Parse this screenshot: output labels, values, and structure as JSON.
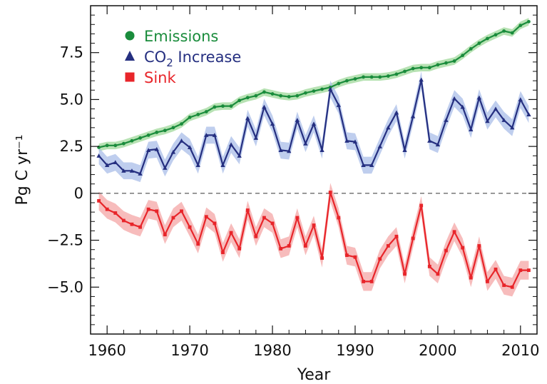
{
  "chart_data": {
    "type": "line",
    "title": "",
    "xlabel": "Year",
    "ylabel": "Pg C yr⁻¹",
    "xlim": [
      1958,
      2012
    ],
    "ylim": [
      -7.5,
      10
    ],
    "x_ticks": [
      1960,
      1970,
      1980,
      1990,
      2000,
      2010
    ],
    "x_tick_labels": [
      "1960",
      "1970",
      "1980",
      "1990",
      "2000",
      "2010"
    ],
    "y_ticks": [
      -5,
      -2.5,
      0,
      2.5,
      5,
      7.5
    ],
    "y_tick_labels": [
      "−5.0",
      "−2.5",
      "0",
      "2.5",
      "5.0",
      "7.5"
    ],
    "zero_line": "dashed",
    "grid": false,
    "legend_position": "top-left",
    "x": [
      1959,
      1960,
      1961,
      1962,
      1963,
      1964,
      1965,
      1966,
      1967,
      1968,
      1969,
      1970,
      1971,
      1972,
      1973,
      1974,
      1975,
      1976,
      1977,
      1978,
      1979,
      1980,
      1981,
      1982,
      1983,
      1984,
      1985,
      1986,
      1987,
      1988,
      1989,
      1990,
      1991,
      1992,
      1993,
      1994,
      1995,
      1996,
      1997,
      1998,
      1999,
      2000,
      2001,
      2002,
      2003,
      2004,
      2005,
      2006,
      2007,
      2008,
      2009,
      2010,
      2011
    ],
    "series": [
      {
        "name": "Emissions",
        "label_main": "Emissions",
        "label_sub": "",
        "label_rest": "",
        "marker": "circle",
        "color": "#1a8c3c",
        "band_color": "#9fd89a",
        "values": [
          2.45,
          2.55,
          2.55,
          2.65,
          2.8,
          2.95,
          3.1,
          3.25,
          3.35,
          3.5,
          3.7,
          4.05,
          4.2,
          4.35,
          4.6,
          4.65,
          4.65,
          4.95,
          5.1,
          5.2,
          5.4,
          5.3,
          5.2,
          5.15,
          5.2,
          5.35,
          5.45,
          5.55,
          5.65,
          5.85,
          6.0,
          6.1,
          6.2,
          6.2,
          6.2,
          6.25,
          6.35,
          6.5,
          6.65,
          6.7,
          6.7,
          6.85,
          6.95,
          7.05,
          7.35,
          7.7,
          8.0,
          8.25,
          8.45,
          8.65,
          8.55,
          8.95,
          9.15
        ],
        "uncertainty": 0.2
      },
      {
        "name": "CO₂ Increase",
        "label_main": "CO",
        "label_sub": "2",
        "label_rest": " Increase",
        "marker": "triangle",
        "color": "#252f80",
        "band_color": "#a9bde8",
        "values": [
          2.0,
          1.5,
          1.65,
          1.2,
          1.2,
          1.05,
          2.3,
          2.35,
          1.35,
          2.2,
          2.8,
          2.45,
          1.5,
          3.1,
          3.1,
          1.5,
          2.6,
          2.0,
          4.0,
          2.95,
          4.6,
          3.7,
          2.3,
          2.25,
          3.9,
          2.65,
          3.7,
          2.3,
          5.55,
          4.7,
          2.8,
          2.75,
          1.5,
          1.5,
          2.5,
          3.5,
          4.3,
          2.3,
          4.1,
          6.05,
          2.8,
          2.6,
          3.9,
          5.05,
          4.6,
          3.4,
          5.1,
          3.85,
          4.5,
          3.9,
          3.5,
          5.0,
          4.2
        ],
        "uncertainty": 0.45
      },
      {
        "name": "Sink",
        "label_main": "Sink",
        "label_sub": "",
        "label_rest": "",
        "marker": "square",
        "color": "#e8252a",
        "band_color": "#f4a6a6",
        "values": [
          -0.4,
          -0.85,
          -1.05,
          -1.45,
          -1.65,
          -1.8,
          -0.85,
          -0.95,
          -2.2,
          -1.3,
          -0.95,
          -1.8,
          -2.7,
          -1.25,
          -1.6,
          -3.15,
          -2.1,
          -2.95,
          -0.9,
          -2.3,
          -1.3,
          -1.6,
          -2.95,
          -2.8,
          -1.3,
          -2.8,
          -1.7,
          -3.45,
          0.05,
          -1.3,
          -3.3,
          -3.4,
          -4.7,
          -4.7,
          -3.5,
          -2.8,
          -2.3,
          -4.3,
          -2.4,
          -0.65,
          -3.9,
          -4.3,
          -3.05,
          -2.05,
          -2.9,
          -4.5,
          -2.8,
          -4.7,
          -4.05,
          -4.9,
          -5.0,
          -4.1,
          -4.1
        ],
        "uncertainty": 0.5
      }
    ]
  }
}
